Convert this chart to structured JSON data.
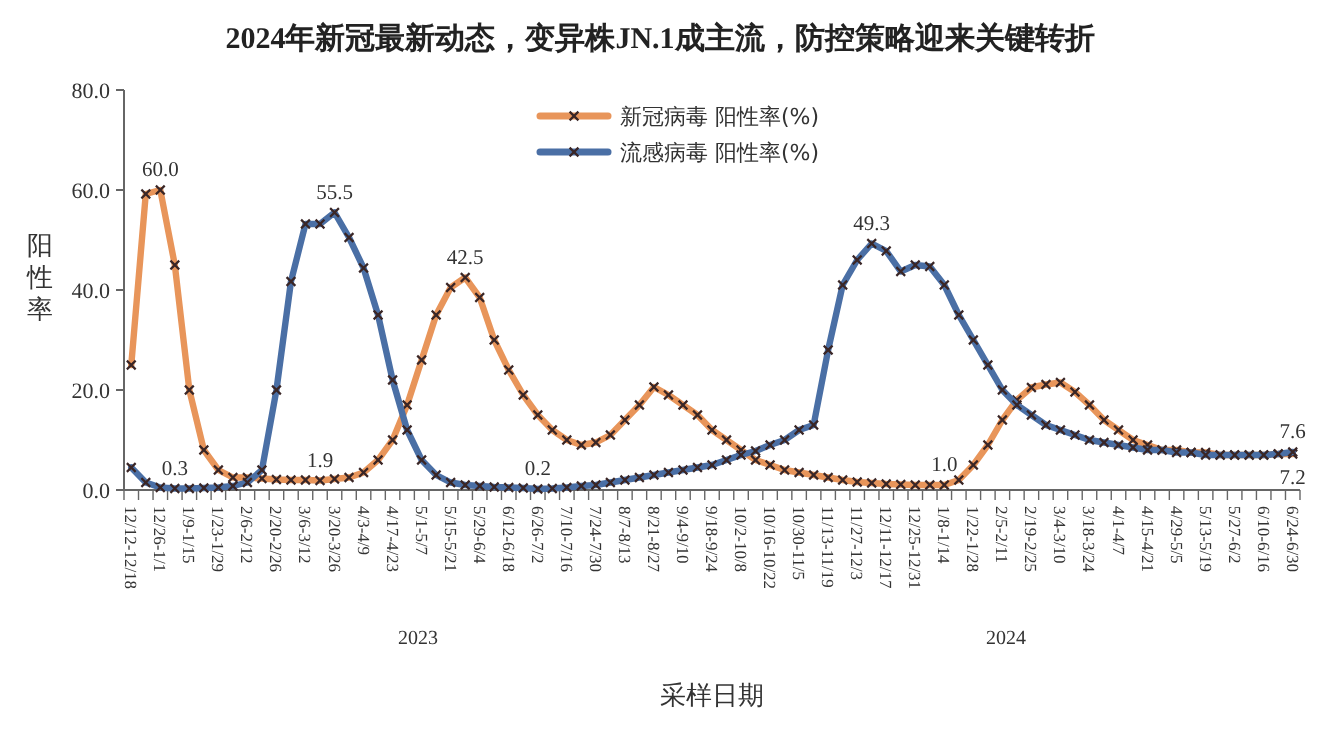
{
  "chart_data": {
    "type": "line",
    "title": "2024年新冠最新动态，变异株JN.1成主流，防控策略迎来关键转折",
    "xlabel": "采样日期",
    "ylabel": "阳性率",
    "categories": [
      "12/12-12/18",
      null,
      "12/26-1/1",
      null,
      "1/9-1/15",
      null,
      "1/23-1/29",
      null,
      "2/6-2/12",
      null,
      "2/20-2/26",
      null,
      "3/6-3/12",
      null,
      "3/20-3/26",
      null,
      "4/3-4/9",
      null,
      "4/17-4/23",
      null,
      "5/1-5/7",
      null,
      "5/15-5/21",
      null,
      "5/29-6/4",
      null,
      "6/12-6/18",
      null,
      "6/26-7/2",
      null,
      "7/10-7/16",
      null,
      "7/24-7/30",
      null,
      "8/7-8/13",
      null,
      "8/21-8/27",
      null,
      "9/4-9/10",
      null,
      "9/18-9/24",
      null,
      "10/2-10/8",
      null,
      "10/16-10/22",
      null,
      "10/30-11/5",
      null,
      "11/13-11/19",
      null,
      "11/27-12/3",
      null,
      "12/11-12/17",
      null,
      "12/25-12/31",
      null,
      "1/8-1/14",
      null,
      "1/22-1/28",
      null,
      "2/5-2/11",
      null,
      "2/19-2/25",
      null,
      "3/4-3/10",
      null,
      "3/18-3/24",
      null,
      "4/1-4/7",
      null,
      "4/15-4/21",
      null,
      "4/29-5/5",
      null,
      "5/13-5/19",
      null,
      "5/27-6/2",
      null,
      "6/10-6/16",
      null,
      "6/24-6/30"
    ],
    "series": [
      {
        "name": "新冠病毒 阳性率(%)",
        "color": "#e8955a",
        "values": [
          25,
          59.2,
          60.0,
          45.0,
          20,
          8,
          4,
          2.5,
          2.5,
          2.3,
          2.1,
          2.0,
          2.0,
          1.9,
          2.2,
          2.5,
          3.5,
          6,
          10,
          17,
          26,
          35,
          40.5,
          42.5,
          38.5,
          30,
          24,
          19,
          15,
          12,
          10,
          9,
          9.5,
          11,
          14,
          17,
          20.6,
          19,
          17,
          15,
          12,
          10,
          8,
          6,
          5,
          4,
          3.5,
          3,
          2.5,
          2,
          1.6,
          1.4,
          1.2,
          1.1,
          1.0,
          1.0,
          1.0,
          2,
          5,
          9,
          14,
          18,
          20.5,
          21.1,
          21.5,
          19.6,
          17,
          14,
          12,
          10,
          9,
          8,
          8,
          7.5,
          7.5,
          7,
          7,
          7,
          7,
          7.2,
          7.2
        ],
        "value_labels": [
          null,
          null,
          "60.0",
          null,
          null,
          null,
          null,
          null,
          null,
          null,
          null,
          null,
          null,
          "1.9",
          null,
          null,
          null,
          null,
          null,
          null,
          null,
          null,
          null,
          "42.5",
          null,
          null,
          null,
          null,
          null,
          null,
          null,
          null,
          null,
          null,
          null,
          null,
          null,
          null,
          null,
          null,
          null,
          null,
          null,
          null,
          null,
          null,
          null,
          null,
          null,
          null,
          null,
          null,
          null,
          null,
          null,
          null,
          "1.0",
          null,
          null,
          null,
          null,
          null,
          null,
          null,
          null,
          null,
          null,
          null,
          null,
          null,
          null,
          null,
          null,
          null,
          null,
          null,
          null,
          null,
          null,
          null,
          "7.2"
        ]
      },
      {
        "name": "流感病毒 阳性率(%)",
        "color": "#4a6fa5",
        "values": [
          4.5,
          1.5,
          0.5,
          0.3,
          0.3,
          0.4,
          0.5,
          0.8,
          1.5,
          4,
          20,
          41.7,
          53.2,
          53.2,
          55.5,
          50.5,
          44.4,
          35,
          22,
          12,
          6,
          3,
          1.5,
          1,
          0.8,
          0.6,
          0.5,
          0.4,
          0.2,
          0.3,
          0.5,
          0.8,
          1,
          1.5,
          2,
          2.5,
          3,
          3.5,
          4,
          4.5,
          5,
          6,
          7,
          7.8,
          9,
          10,
          12,
          13,
          28,
          41,
          46,
          49.3,
          47.8,
          43.7,
          45,
          44.7,
          41,
          35,
          30,
          25,
          20,
          17,
          15,
          13,
          12,
          11,
          10,
          9.5,
          9,
          8.5,
          8,
          8,
          7.5,
          7.5,
          7,
          7,
          7,
          7,
          7,
          7.2,
          7.6
        ],
        "value_labels": [
          null,
          null,
          null,
          "0.3",
          null,
          null,
          null,
          null,
          null,
          null,
          null,
          null,
          null,
          null,
          "55.5",
          null,
          null,
          null,
          null,
          null,
          null,
          null,
          null,
          null,
          null,
          null,
          null,
          null,
          "0.2",
          null,
          null,
          null,
          null,
          null,
          null,
          null,
          null,
          null,
          null,
          null,
          null,
          null,
          null,
          null,
          null,
          null,
          null,
          null,
          null,
          null,
          null,
          "49.3",
          null,
          null,
          null,
          null,
          null,
          null,
          null,
          null,
          null,
          null,
          null,
          null,
          null,
          null,
          null,
          null,
          null,
          null,
          null,
          null,
          null,
          null,
          null,
          null,
          null,
          null,
          null,
          null,
          "7.6"
        ]
      }
    ],
    "ylim": [
      0,
      80
    ],
    "yticks": [
      {
        "value": 0,
        "label": "0.0"
      },
      {
        "value": 20,
        "label": "20.0"
      },
      {
        "value": 40,
        "label": "40.0"
      },
      {
        "value": 60,
        "label": "60.0"
      },
      {
        "value": 80,
        "label": "80.0"
      }
    ],
    "legend": "top",
    "marker": "cross",
    "line_style": "solid",
    "annotations": [
      "2023",
      "2024"
    ]
  }
}
